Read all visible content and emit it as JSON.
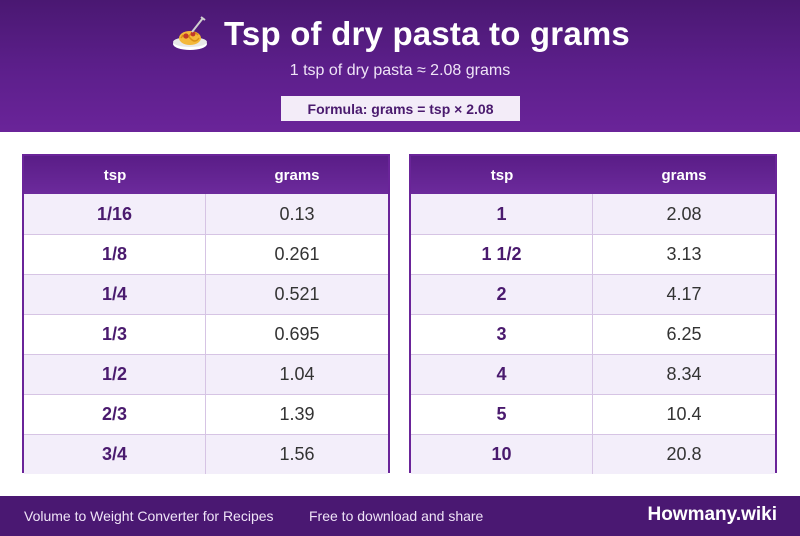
{
  "header": {
    "title": "Tsp of dry pasta to grams",
    "subtitle": "1 tsp of dry pasta ≈ 2.08 grams",
    "formula": "Formula: grams = tsp × 2.08",
    "icon": "spaghetti-icon"
  },
  "columns": {
    "unit": "tsp",
    "result": "grams"
  },
  "left_table": [
    {
      "tsp": "1/16",
      "grams": "0.13"
    },
    {
      "tsp": "1/8",
      "grams": "0.261"
    },
    {
      "tsp": "1/4",
      "grams": "0.521"
    },
    {
      "tsp": "1/3",
      "grams": "0.695"
    },
    {
      "tsp": "1/2",
      "grams": "1.04"
    },
    {
      "tsp": "2/3",
      "grams": "1.39"
    },
    {
      "tsp": "3/4",
      "grams": "1.56"
    }
  ],
  "right_table": [
    {
      "tsp": "1",
      "grams": "2.08"
    },
    {
      "tsp": "1 1/2",
      "grams": "3.13"
    },
    {
      "tsp": "2",
      "grams": "4.17"
    },
    {
      "tsp": "3",
      "grams": "6.25"
    },
    {
      "tsp": "4",
      "grams": "8.34"
    },
    {
      "tsp": "5",
      "grams": "10.4"
    },
    {
      "tsp": "10",
      "grams": "20.8"
    }
  ],
  "footer": {
    "left_text": "Volume to Weight Converter for Recipes",
    "middle_text": "Free to download and share",
    "brand": "Howmany.wiki"
  },
  "colors": {
    "primary": "#5d1f8c",
    "accent_light": "#f3eefa"
  }
}
